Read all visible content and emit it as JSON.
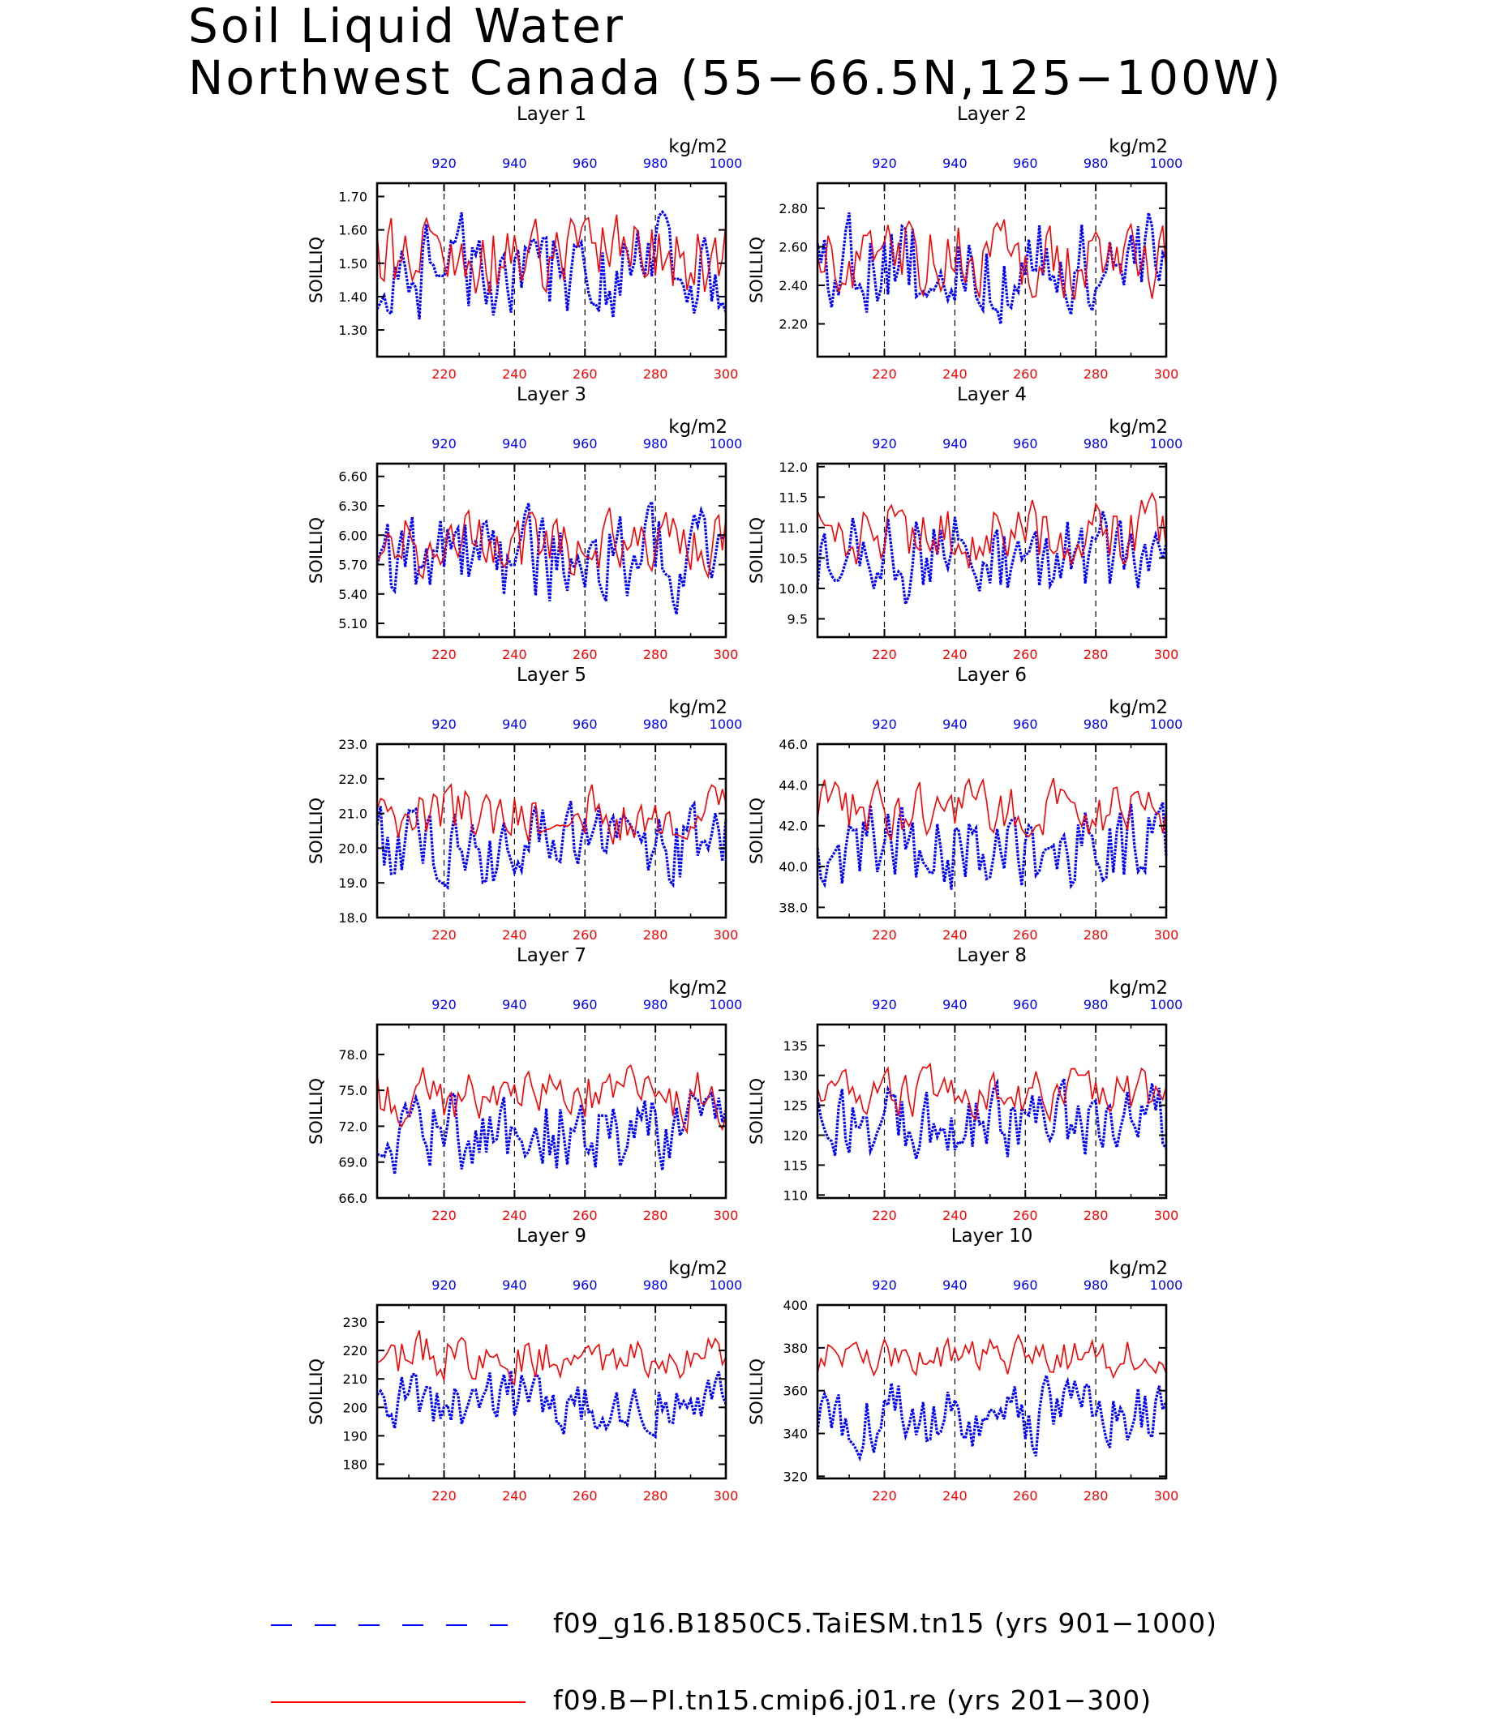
{
  "title_line1": "Soil Liquid Water",
  "title_line2": "Northwest Canada (55−66.5N,125−100W)",
  "colors": {
    "series_blue": "#0000ff",
    "series_red": "#ff0000",
    "axis": "#000000"
  },
  "legend": [
    {
      "label": "f09_g16.B1850C5.TaiESM.tn15 (yrs 901−1000)",
      "color": "#0000ff",
      "style": "dashed"
    },
    {
      "label": "f09.B−PI.tn15.cmip6.j01.re (yrs 201−300)",
      "color": "#ff0000",
      "style": "solid"
    }
  ],
  "chart_data": [
    {
      "type": "line",
      "title": "Layer 1",
      "ylabel": "SOILLIQ",
      "units": "kg/m2",
      "ylim": [
        1.22,
        1.74
      ],
      "yticks": [
        "1.30",
        "1.40",
        "1.50",
        "1.60",
        "1.70"
      ],
      "x_bottom_ticks": [
        "220",
        "240",
        "260",
        "280",
        "300"
      ],
      "x_top_ticks": [
        "920",
        "940",
        "960",
        "980",
        "1000"
      ],
      "series": [
        {
          "color": "#0000ff",
          "style": "dashed",
          "mean": 1.48,
          "amp": 0.11,
          "seed": 11
        },
        {
          "color": "#ff0000",
          "style": "solid",
          "mean": 1.52,
          "amp": 0.09,
          "seed": 12
        }
      ]
    },
    {
      "type": "line",
      "title": "Layer 2",
      "ylabel": "SOILLIQ",
      "units": "kg/m2",
      "ylim": [
        2.03,
        2.93
      ],
      "yticks": [
        "2.20",
        "2.40",
        "2.60",
        "2.80"
      ],
      "x_bottom_ticks": [
        "220",
        "240",
        "260",
        "280",
        "300"
      ],
      "x_top_ticks": [
        "920",
        "940",
        "960",
        "980",
        "1000"
      ],
      "series": [
        {
          "color": "#0000ff",
          "style": "dashed",
          "mean": 2.5,
          "amp": 0.2,
          "seed": 21
        },
        {
          "color": "#ff0000",
          "style": "solid",
          "mean": 2.55,
          "amp": 0.15,
          "seed": 22
        }
      ]
    },
    {
      "type": "line",
      "title": "Layer 3",
      "ylabel": "SOILLIQ",
      "units": "kg/m2",
      "ylim": [
        4.96,
        6.73
      ],
      "yticks": [
        "5.10",
        "5.40",
        "5.70",
        "6.00",
        "6.30",
        "6.60"
      ],
      "x_bottom_ticks": [
        "220",
        "240",
        "260",
        "280",
        "300"
      ],
      "x_top_ticks": [
        "920",
        "940",
        "960",
        "980",
        "1000"
      ],
      "series": [
        {
          "color": "#0000ff",
          "style": "dashed",
          "mean": 5.75,
          "amp": 0.35,
          "seed": 31
        },
        {
          "color": "#ff0000",
          "style": "solid",
          "mean": 5.9,
          "amp": 0.25,
          "seed": 32
        }
      ]
    },
    {
      "type": "line",
      "title": "Layer 4",
      "ylabel": "SOILLIQ",
      "units": "kg/m2",
      "ylim": [
        9.2,
        12.05
      ],
      "yticks": [
        "9.5",
        "10.0",
        "10.5",
        "11.0",
        "11.5",
        "12.0"
      ],
      "x_bottom_ticks": [
        "220",
        "240",
        "260",
        "280",
        "300"
      ],
      "x_top_ticks": [
        "920",
        "940",
        "960",
        "980",
        "1000"
      ],
      "series": [
        {
          "color": "#0000ff",
          "style": "dashed",
          "mean": 10.5,
          "amp": 0.55,
          "seed": 41
        },
        {
          "color": "#ff0000",
          "style": "solid",
          "mean": 10.9,
          "amp": 0.4,
          "seed": 42
        }
      ]
    },
    {
      "type": "line",
      "title": "Layer 5",
      "ylabel": "SOILLIQ",
      "units": "kg/m2",
      "ylim": [
        18.0,
        23.0
      ],
      "yticks": [
        "18.0",
        "19.0",
        "20.0",
        "21.0",
        "22.0",
        "23.0"
      ],
      "x_bottom_ticks": [
        "220",
        "240",
        "260",
        "280",
        "300"
      ],
      "x_top_ticks": [
        "920",
        "940",
        "960",
        "980",
        "1000"
      ],
      "series": [
        {
          "color": "#0000ff",
          "style": "dashed",
          "mean": 20.0,
          "amp": 0.9,
          "seed": 51
        },
        {
          "color": "#ff0000",
          "style": "solid",
          "mean": 21.0,
          "amp": 0.6,
          "seed": 52
        }
      ]
    },
    {
      "type": "line",
      "title": "Layer 6",
      "ylabel": "SOILLIQ",
      "units": "kg/m2",
      "ylim": [
        37.5,
        46.0
      ],
      "yticks": [
        "38.0",
        "40.0",
        "42.0",
        "44.0",
        "46.0"
      ],
      "x_bottom_ticks": [
        "220",
        "240",
        "260",
        "280",
        "300"
      ],
      "x_top_ticks": [
        "920",
        "940",
        "960",
        "980",
        "1000"
      ],
      "series": [
        {
          "color": "#0000ff",
          "style": "dashed",
          "mean": 40.9,
          "amp": 1.6,
          "seed": 61
        },
        {
          "color": "#ff0000",
          "style": "solid",
          "mean": 42.8,
          "amp": 1.0,
          "seed": 62
        }
      ]
    },
    {
      "type": "line",
      "title": "Layer 7",
      "ylabel": "SOILLIQ",
      "units": "kg/m2",
      "ylim": [
        66.0,
        80.5
      ],
      "yticks": [
        "66.0",
        "69.0",
        "72.0",
        "75.0",
        "78.0"
      ],
      "x_bottom_ticks": [
        "220",
        "240",
        "260",
        "280",
        "300"
      ],
      "x_top_ticks": [
        "920",
        "940",
        "960",
        "980",
        "1000"
      ],
      "series": [
        {
          "color": "#0000ff",
          "style": "dashed",
          "mean": 71.5,
          "amp": 2.5,
          "seed": 71
        },
        {
          "color": "#ff0000",
          "style": "solid",
          "mean": 74.5,
          "amp": 1.8,
          "seed": 72
        }
      ]
    },
    {
      "type": "line",
      "title": "Layer 8",
      "ylabel": "SOILLIQ",
      "units": "kg/m2",
      "ylim": [
        109.5,
        138.5
      ],
      "yticks": [
        "110",
        "115",
        "120",
        "125",
        "130",
        "135"
      ],
      "x_bottom_ticks": [
        "220",
        "240",
        "260",
        "280",
        "300"
      ],
      "x_top_ticks": [
        "920",
        "940",
        "960",
        "980",
        "1000"
      ],
      "series": [
        {
          "color": "#0000ff",
          "style": "dashed",
          "mean": 122.0,
          "amp": 4.5,
          "seed": 81
        },
        {
          "color": "#ff0000",
          "style": "solid",
          "mean": 127.0,
          "amp": 3.0,
          "seed": 82
        }
      ]
    },
    {
      "type": "line",
      "title": "Layer 9",
      "ylabel": "SOILLIQ",
      "units": "kg/m2",
      "ylim": [
        175.0,
        236.0
      ],
      "yticks": [
        "180",
        "190",
        "200",
        "210",
        "220",
        "230"
      ],
      "x_bottom_ticks": [
        "220",
        "240",
        "260",
        "280",
        "300"
      ],
      "x_top_ticks": [
        "920",
        "940",
        "960",
        "980",
        "1000"
      ],
      "series": [
        {
          "color": "#0000ff",
          "style": "dashed",
          "mean": 203.0,
          "amp": 8.0,
          "seed": 91
        },
        {
          "color": "#ff0000",
          "style": "solid",
          "mean": 218.0,
          "amp": 6.0,
          "seed": 92
        }
      ]
    },
    {
      "type": "line",
      "title": "Layer 10",
      "ylabel": "SOILLIQ",
      "units": "kg/m2",
      "ylim": [
        319.0,
        400.0
      ],
      "yticks": [
        "320",
        "340",
        "360",
        "380",
        "400"
      ],
      "x_bottom_ticks": [
        "220",
        "240",
        "260",
        "280",
        "300"
      ],
      "x_top_ticks": [
        "920",
        "940",
        "960",
        "980",
        "1000"
      ],
      "series": [
        {
          "color": "#0000ff",
          "style": "dashed",
          "mean": 348.0,
          "amp": 12.0,
          "seed": 101
        },
        {
          "color": "#ff0000",
          "style": "solid",
          "mean": 376.0,
          "amp": 7.0,
          "seed": 102
        }
      ]
    }
  ]
}
